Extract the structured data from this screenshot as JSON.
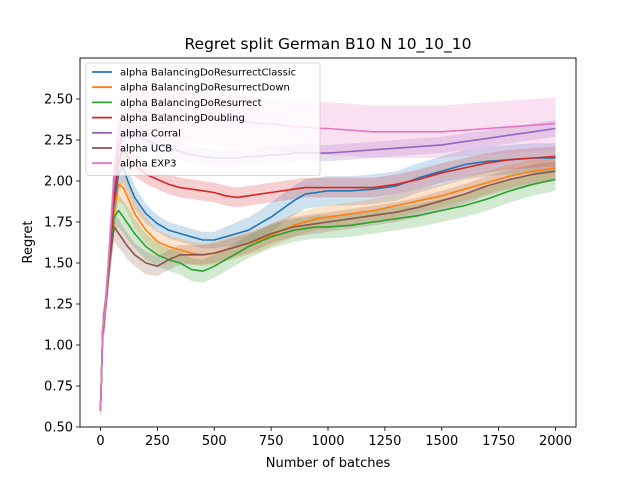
{
  "chart_data": {
    "type": "line",
    "title": "Regret split German B10 N 10_10_10",
    "xlabel": "Number of batches",
    "ylabel": "Regret",
    "xlim": [
      -90,
      2090
    ],
    "ylim": [
      0.5,
      2.75
    ],
    "xticks": [
      0,
      250,
      500,
      750,
      1000,
      1250,
      1500,
      1750,
      2000
    ],
    "yticks": [
      0.5,
      0.75,
      1.0,
      1.25,
      1.5,
      1.75,
      2.0,
      2.25,
      2.5
    ],
    "xtick_labels": [
      "0",
      "250",
      "500",
      "750",
      "1000",
      "1250",
      "1500",
      "1750",
      "2000"
    ],
    "ytick_labels": [
      "0.50",
      "0.75",
      "1.00",
      "1.25",
      "1.50",
      "1.75",
      "2.00",
      "2.25",
      "2.50"
    ],
    "grid": false,
    "legend_position": "top-left",
    "series": [
      {
        "name": "alpha BalancingDoResurrectClassic",
        "color": "#1f77b4",
        "x": [
          0,
          10,
          20,
          40,
          60,
          80,
          100,
          120,
          150,
          200,
          250,
          300,
          350,
          400,
          450,
          500,
          550,
          600,
          650,
          700,
          750,
          800,
          850,
          900,
          950,
          1000,
          1100,
          1200,
          1300,
          1400,
          1500,
          1600,
          1700,
          1800,
          1900,
          2000
        ],
        "y": [
          0.6,
          1.1,
          1.2,
          1.55,
          1.85,
          2.05,
          2.08,
          2.0,
          1.9,
          1.8,
          1.74,
          1.7,
          1.68,
          1.66,
          1.64,
          1.64,
          1.66,
          1.68,
          1.7,
          1.74,
          1.78,
          1.83,
          1.88,
          1.92,
          1.93,
          1.94,
          1.94,
          1.95,
          1.97,
          2.02,
          2.06,
          2.1,
          2.12,
          2.13,
          2.14,
          2.14
        ],
        "band": [
          0.05,
          0.08,
          0.08,
          0.09,
          0.1,
          0.1,
          0.09,
          0.08,
          0.07,
          0.06,
          0.05,
          0.05,
          0.05,
          0.05,
          0.05,
          0.05,
          0.06,
          0.07,
          0.08,
          0.08,
          0.09,
          0.09,
          0.09,
          0.09,
          0.09,
          0.09,
          0.09,
          0.09,
          0.09,
          0.09,
          0.09,
          0.09,
          0.09,
          0.09,
          0.09,
          0.09
        ]
      },
      {
        "name": "alpha BalancingDoResurrectDown",
        "color": "#ff7f0e",
        "x": [
          0,
          10,
          20,
          40,
          60,
          80,
          100,
          120,
          150,
          200,
          250,
          300,
          350,
          400,
          450,
          500,
          550,
          600,
          650,
          700,
          750,
          800,
          850,
          900,
          950,
          1000,
          1100,
          1200,
          1300,
          1400,
          1500,
          1600,
          1700,
          1800,
          1900,
          2000
        ],
        "y": [
          0.6,
          1.1,
          1.2,
          1.5,
          1.8,
          1.98,
          1.96,
          1.9,
          1.8,
          1.7,
          1.63,
          1.6,
          1.58,
          1.56,
          1.55,
          1.56,
          1.58,
          1.6,
          1.62,
          1.64,
          1.67,
          1.7,
          1.73,
          1.75,
          1.77,
          1.78,
          1.8,
          1.82,
          1.85,
          1.88,
          1.91,
          1.95,
          1.99,
          2.03,
          2.06,
          2.08
        ],
        "band": [
          0.05,
          0.08,
          0.09,
          0.1,
          0.11,
          0.11,
          0.1,
          0.1,
          0.09,
          0.08,
          0.07,
          0.07,
          0.07,
          0.07,
          0.07,
          0.07,
          0.07,
          0.07,
          0.07,
          0.07,
          0.07,
          0.07,
          0.07,
          0.07,
          0.07,
          0.07,
          0.07,
          0.07,
          0.07,
          0.07,
          0.07,
          0.07,
          0.07,
          0.07,
          0.07,
          0.07
        ]
      },
      {
        "name": "alpha BalancingDoResurrect",
        "color": "#2ca02c",
        "x": [
          0,
          10,
          20,
          40,
          60,
          80,
          100,
          120,
          150,
          200,
          250,
          300,
          350,
          400,
          450,
          500,
          550,
          600,
          650,
          700,
          750,
          800,
          850,
          900,
          950,
          1000,
          1100,
          1200,
          1300,
          1400,
          1500,
          1600,
          1700,
          1800,
          1900,
          2000
        ],
        "y": [
          0.6,
          1.1,
          1.2,
          1.5,
          1.78,
          1.82,
          1.78,
          1.74,
          1.68,
          1.6,
          1.55,
          1.52,
          1.5,
          1.46,
          1.45,
          1.48,
          1.52,
          1.56,
          1.6,
          1.63,
          1.66,
          1.68,
          1.7,
          1.71,
          1.72,
          1.72,
          1.73,
          1.75,
          1.77,
          1.79,
          1.82,
          1.85,
          1.89,
          1.94,
          1.98,
          2.01
        ],
        "band": [
          0.05,
          0.08,
          0.08,
          0.09,
          0.1,
          0.1,
          0.1,
          0.1,
          0.09,
          0.08,
          0.07,
          0.07,
          0.07,
          0.07,
          0.07,
          0.07,
          0.07,
          0.07,
          0.07,
          0.07,
          0.07,
          0.07,
          0.07,
          0.07,
          0.07,
          0.07,
          0.07,
          0.07,
          0.07,
          0.07,
          0.07,
          0.07,
          0.07,
          0.07,
          0.07,
          0.07
        ]
      },
      {
        "name": "alpha BalancingDoubling",
        "color": "#d62728",
        "x": [
          0,
          10,
          20,
          40,
          60,
          80,
          100,
          120,
          150,
          200,
          250,
          300,
          350,
          400,
          450,
          500,
          550,
          600,
          650,
          700,
          750,
          800,
          850,
          900,
          950,
          1000,
          1100,
          1200,
          1300,
          1400,
          1500,
          1600,
          1700,
          1800,
          1900,
          2000
        ],
        "y": [
          0.6,
          1.1,
          1.2,
          1.55,
          1.9,
          2.12,
          2.2,
          2.15,
          2.1,
          2.04,
          2.01,
          1.98,
          1.96,
          1.95,
          1.94,
          1.93,
          1.91,
          1.9,
          1.91,
          1.92,
          1.93,
          1.94,
          1.95,
          1.96,
          1.96,
          1.96,
          1.96,
          1.96,
          1.98,
          2.01,
          2.05,
          2.08,
          2.11,
          2.13,
          2.14,
          2.15
        ],
        "band": [
          0.05,
          0.08,
          0.09,
          0.1,
          0.1,
          0.1,
          0.09,
          0.08,
          0.07,
          0.06,
          0.06,
          0.06,
          0.06,
          0.06,
          0.06,
          0.06,
          0.06,
          0.06,
          0.06,
          0.06,
          0.06,
          0.06,
          0.06,
          0.06,
          0.06,
          0.06,
          0.06,
          0.06,
          0.06,
          0.06,
          0.06,
          0.06,
          0.06,
          0.06,
          0.06,
          0.06
        ]
      },
      {
        "name": "alpha Corral",
        "color": "#9467bd",
        "x": [
          0,
          10,
          20,
          40,
          60,
          80,
          100,
          120,
          150,
          200,
          250,
          300,
          350,
          400,
          450,
          500,
          550,
          600,
          650,
          700,
          750,
          800,
          850,
          900,
          950,
          1000,
          1100,
          1200,
          1300,
          1400,
          1500,
          1600,
          1700,
          1800,
          1900,
          2000
        ],
        "y": [
          0.6,
          1.1,
          1.2,
          1.6,
          2.0,
          2.2,
          2.3,
          2.3,
          2.28,
          2.25,
          2.22,
          2.2,
          2.18,
          2.16,
          2.15,
          2.14,
          2.14,
          2.14,
          2.15,
          2.15,
          2.16,
          2.16,
          2.17,
          2.17,
          2.17,
          2.17,
          2.18,
          2.19,
          2.2,
          2.21,
          2.22,
          2.24,
          2.26,
          2.28,
          2.3,
          2.32
        ],
        "band": [
          0.05,
          0.08,
          0.09,
          0.1,
          0.1,
          0.1,
          0.09,
          0.08,
          0.07,
          0.06,
          0.05,
          0.05,
          0.05,
          0.05,
          0.05,
          0.05,
          0.05,
          0.05,
          0.05,
          0.05,
          0.05,
          0.05,
          0.05,
          0.05,
          0.05,
          0.05,
          0.05,
          0.05,
          0.05,
          0.05,
          0.05,
          0.05,
          0.05,
          0.05,
          0.05,
          0.05
        ]
      },
      {
        "name": "alpha UCB",
        "color": "#8c564b",
        "x": [
          0,
          10,
          20,
          40,
          60,
          80,
          100,
          120,
          150,
          200,
          250,
          300,
          350,
          400,
          450,
          500,
          550,
          600,
          650,
          700,
          750,
          800,
          850,
          900,
          950,
          1000,
          1100,
          1200,
          1300,
          1400,
          1500,
          1600,
          1700,
          1800,
          1900,
          2000
        ],
        "y": [
          0.6,
          1.1,
          1.2,
          1.5,
          1.72,
          1.68,
          1.64,
          1.6,
          1.55,
          1.5,
          1.48,
          1.52,
          1.55,
          1.55,
          1.55,
          1.56,
          1.58,
          1.6,
          1.62,
          1.65,
          1.68,
          1.7,
          1.72,
          1.73,
          1.74,
          1.75,
          1.77,
          1.79,
          1.81,
          1.84,
          1.88,
          1.92,
          1.97,
          2.01,
          2.04,
          2.06
        ],
        "band": [
          0.05,
          0.08,
          0.08,
          0.09,
          0.09,
          0.09,
          0.08,
          0.08,
          0.07,
          0.07,
          0.06,
          0.06,
          0.06,
          0.06,
          0.06,
          0.06,
          0.06,
          0.06,
          0.06,
          0.06,
          0.06,
          0.06,
          0.06,
          0.06,
          0.06,
          0.06,
          0.06,
          0.06,
          0.06,
          0.06,
          0.06,
          0.06,
          0.06,
          0.06,
          0.06,
          0.06
        ]
      },
      {
        "name": "alpha EXP3",
        "color": "#e377c2",
        "x": [
          0,
          10,
          20,
          40,
          60,
          80,
          100,
          120,
          150,
          200,
          250,
          300,
          350,
          400,
          450,
          500,
          550,
          600,
          650,
          700,
          750,
          800,
          850,
          900,
          950,
          1000,
          1100,
          1200,
          1300,
          1400,
          1500,
          1600,
          1700,
          1800,
          1900,
          2000
        ],
        "y": [
          0.6,
          1.1,
          1.2,
          1.6,
          2.05,
          2.3,
          2.42,
          2.44,
          2.43,
          2.42,
          2.41,
          2.4,
          2.4,
          2.39,
          2.38,
          2.38,
          2.37,
          2.37,
          2.36,
          2.35,
          2.35,
          2.34,
          2.33,
          2.33,
          2.32,
          2.32,
          2.31,
          2.3,
          2.3,
          2.3,
          2.3,
          2.31,
          2.32,
          2.33,
          2.34,
          2.35
        ],
        "band": [
          0.05,
          0.1,
          0.12,
          0.14,
          0.15,
          0.16,
          0.16,
          0.16,
          0.16,
          0.16,
          0.16,
          0.16,
          0.16,
          0.16,
          0.16,
          0.16,
          0.16,
          0.16,
          0.16,
          0.16,
          0.16,
          0.16,
          0.16,
          0.16,
          0.16,
          0.16,
          0.16,
          0.16,
          0.16,
          0.16,
          0.16,
          0.16,
          0.16,
          0.16,
          0.16,
          0.16
        ]
      }
    ]
  }
}
